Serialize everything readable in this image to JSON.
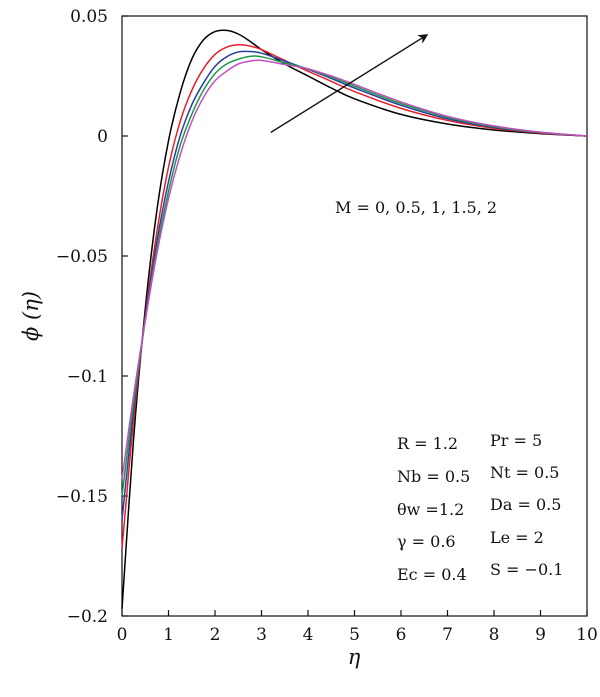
{
  "chart_data": {
    "type": "line",
    "xlabel": "η",
    "ylabel": "ϕ (η)",
    "xlim": [
      0,
      10
    ],
    "ylim": [
      -0.2,
      0.05
    ],
    "grid": false,
    "x_ticks": [
      0,
      1,
      2,
      3,
      4,
      5,
      6,
      7,
      8,
      9,
      10
    ],
    "x_tick_labels": [
      "0",
      "1",
      "2",
      "3",
      "4",
      "5",
      "6",
      "7",
      "8",
      "9",
      "10"
    ],
    "y_ticks": [
      0.05,
      0,
      -0.05,
      -0.1,
      -0.15,
      -0.2
    ],
    "y_tick_labels": [
      "0.05",
      "0",
      "−0.05",
      "−0.1",
      "−0.15",
      "−0.2"
    ],
    "x": [
      0,
      0.25,
      0.5,
      0.75,
      1,
      1.25,
      1.5,
      1.75,
      2,
      2.25,
      2.5,
      2.75,
      3,
      3.5,
      4,
      4.5,
      5,
      6,
      7,
      8,
      9,
      10
    ],
    "series": [
      {
        "color": "#000000",
        "values": [
          -0.197,
          -0.126,
          -0.072,
          -0.031,
          -0.002,
          0.018,
          0.032,
          0.04,
          0.0435,
          0.044,
          0.0425,
          0.0395,
          0.036,
          0.03,
          0.025,
          0.02,
          0.0155,
          0.009,
          0.005,
          0.0025,
          0.001,
          0.0
        ]
      },
      {
        "color": "#e8202a",
        "values": [
          -0.172,
          -0.118,
          -0.075,
          -0.04,
          -0.013,
          0.006,
          0.019,
          0.028,
          0.034,
          0.037,
          0.038,
          0.0375,
          0.036,
          0.0315,
          0.027,
          0.0228,
          0.0185,
          0.0115,
          0.0065,
          0.0032,
          0.0012,
          0.0
        ]
      },
      {
        "color": "#2b3f9e",
        "values": [
          -0.16,
          -0.114,
          -0.076,
          -0.044,
          -0.019,
          0.0,
          0.013,
          0.022,
          0.029,
          0.033,
          0.035,
          0.0352,
          0.0345,
          0.0312,
          0.0278,
          0.024,
          0.02,
          0.0128,
          0.0072,
          0.0036,
          0.0014,
          0.0
        ]
      },
      {
        "color": "#1a9a46",
        "values": [
          -0.15,
          -0.111,
          -0.077,
          -0.047,
          -0.023,
          -0.004,
          0.009,
          0.019,
          0.026,
          0.03,
          0.032,
          0.0332,
          0.033,
          0.0305,
          0.028,
          0.0245,
          0.0208,
          0.0135,
          0.0078,
          0.0039,
          0.0015,
          0.0
        ]
      },
      {
        "color": "#c14fc1",
        "values": [
          -0.143,
          -0.108,
          -0.077,
          -0.049,
          -0.026,
          -0.008,
          0.006,
          0.016,
          0.023,
          0.027,
          0.03,
          0.0312,
          0.0315,
          0.0298,
          0.028,
          0.025,
          0.0215,
          0.0142,
          0.0082,
          0.0042,
          0.0016,
          0.0
        ]
      }
    ],
    "arrow": {
      "from": [
        3.2,
        0.0015
      ],
      "to": [
        6.55,
        0.042
      ]
    },
    "annotation_label": "M = 0, 0.5, 1, 1.5, 2",
    "parameters_left": [
      "R = 1.2",
      "Nb = 0.5",
      "θw =1.2",
      "γ = 0.6",
      "Ec = 0.4"
    ],
    "parameters_right": [
      "Pr = 5",
      "Nt = 0.5",
      "Da = 0.5",
      "Le = 2",
      "S = −0.1"
    ]
  }
}
